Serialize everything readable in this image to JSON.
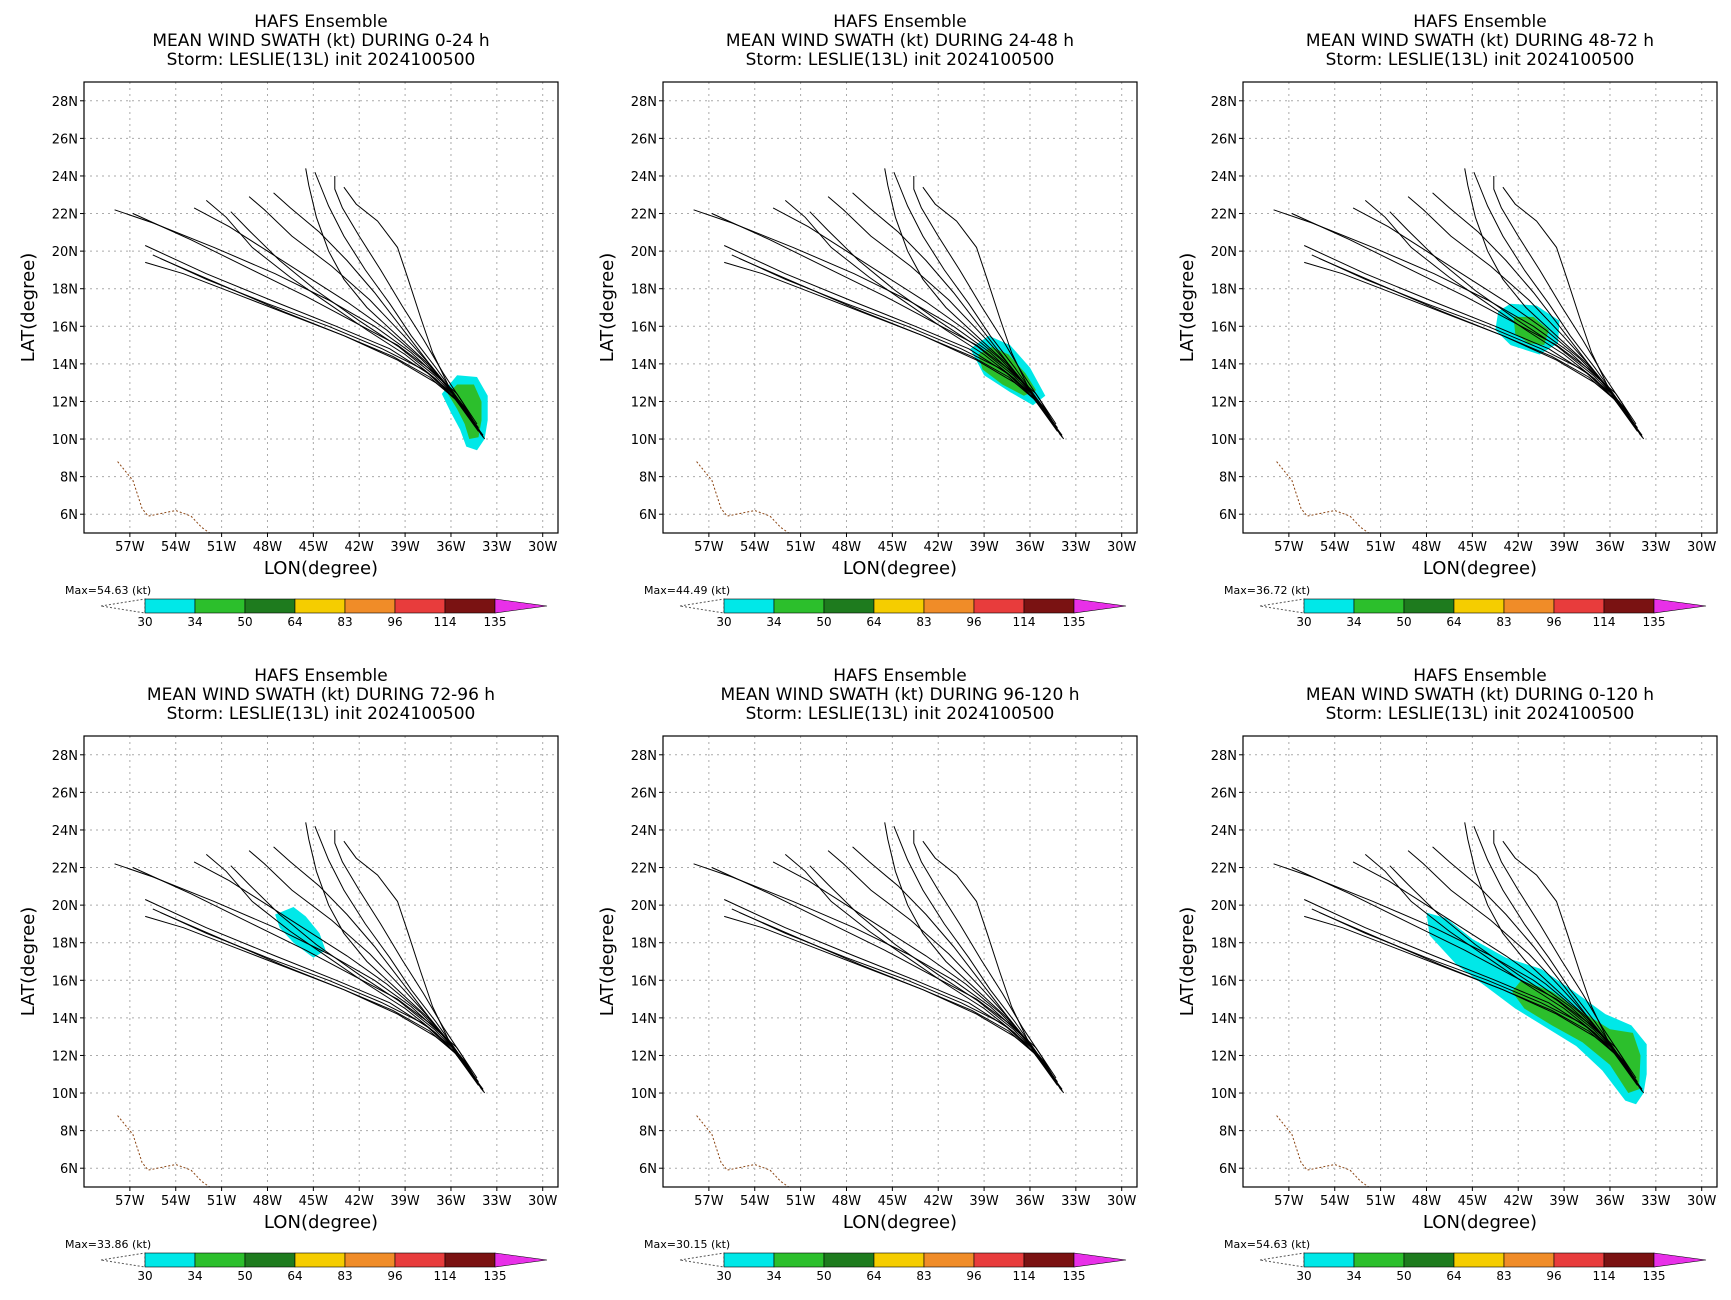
{
  "figure": {
    "storm_line": "Storm: LESLIE(13L) init 2024100500",
    "model": "HAFS Ensemble",
    "xlabel": "LON(degree)",
    "ylabel": "LAT(degree)"
  },
  "colorbar": {
    "levels": [
      "30",
      "34",
      "50",
      "64",
      "83",
      "96",
      "114",
      "135"
    ],
    "colors": [
      "#00e8e8",
      "#2cbf2c",
      "#1e7b1e",
      "#f5cd00",
      "#f08c28",
      "#e83c3c",
      "#7a1212",
      "#e830e8"
    ]
  },
  "panels": [
    {
      "title": "MEAN WIND SWATH (kt) DURING  0-24 h",
      "max": "Max=54.63 (kt)"
    },
    {
      "title": "MEAN WIND SWATH (kt) DURING 24-48 h",
      "max": "Max=44.49 (kt)"
    },
    {
      "title": "MEAN WIND SWATH (kt) DURING 48-72 h",
      "max": "Max=36.72 (kt)"
    },
    {
      "title": "MEAN WIND SWATH (kt) DURING 72-96 h",
      "max": "Max=33.86 (kt)"
    },
    {
      "title": "MEAN WIND SWATH (kt) DURING 96-120 h",
      "max": "Max=30.15 (kt)"
    },
    {
      "title": "MEAN WIND SWATH (kt) DURING 0-120 h",
      "max": "Max=54.63 (kt)"
    }
  ],
  "map": {
    "lon_ticks": [
      "57W",
      "54W",
      "51W",
      "48W",
      "45W",
      "42W",
      "39W",
      "36W",
      "33W",
      "30W"
    ],
    "lat_ticks": [
      "28N",
      "26N",
      "24N",
      "22N",
      "20N",
      "18N",
      "16N",
      "14N",
      "12N",
      "10N",
      "8N",
      "6N"
    ]
  },
  "chart_data": {
    "type": "map",
    "domain": {
      "lon": [
        -60,
        -29
      ],
      "lat": [
        5,
        29
      ]
    },
    "tracks": [
      [
        [
          -34.2,
          10.6
        ],
        [
          -35.5,
          12
        ],
        [
          -37,
          13
        ],
        [
          -39.5,
          14.2
        ],
        [
          -43,
          15.5
        ],
        [
          -47,
          16.8
        ],
        [
          -51,
          18.2
        ],
        [
          -55,
          19.6
        ]
      ],
      [
        [
          -34,
          10.3
        ],
        [
          -35.8,
          12.2
        ],
        [
          -37.5,
          13.5
        ],
        [
          -40,
          14.8
        ],
        [
          -43.5,
          16
        ],
        [
          -47.5,
          17.3
        ],
        [
          -52,
          18.8
        ],
        [
          -56,
          20.3
        ]
      ],
      [
        [
          -34.3,
          10.8
        ],
        [
          -35.6,
          12.4
        ],
        [
          -37.2,
          13.6
        ],
        [
          -39.5,
          15
        ],
        [
          -42.5,
          16.3
        ],
        [
          -45.5,
          17.6
        ],
        [
          -49,
          19
        ],
        [
          -53,
          20.6
        ],
        [
          -56.8,
          22
        ]
      ],
      [
        [
          -33.9,
          10.1
        ],
        [
          -35.3,
          11.8
        ],
        [
          -37,
          13.2
        ],
        [
          -39,
          14.5
        ],
        [
          -41.5,
          15.8
        ],
        [
          -44,
          17.2
        ],
        [
          -46.5,
          18.6
        ],
        [
          -49,
          20.2
        ],
        [
          -50.7,
          21.8
        ],
        [
          -52,
          22.7
        ]
      ],
      [
        [
          -34.5,
          10.9
        ],
        [
          -36,
          12.6
        ],
        [
          -37.5,
          14
        ],
        [
          -39.5,
          15.5
        ],
        [
          -41.5,
          17
        ],
        [
          -43,
          18.5
        ],
        [
          -44,
          20
        ],
        [
          -44.8,
          21.8
        ],
        [
          -45.3,
          23.5
        ],
        [
          -45.5,
          24.4
        ]
      ],
      [
        [
          -34.2,
          10.5
        ],
        [
          -35.6,
          12.2
        ],
        [
          -37,
          13.8
        ],
        [
          -38.6,
          15.5
        ],
        [
          -40,
          17.2
        ],
        [
          -41.6,
          19
        ],
        [
          -43,
          20.8
        ],
        [
          -44,
          22.4
        ],
        [
          -44.6,
          23.6
        ],
        [
          -44.9,
          24.2
        ]
      ],
      [
        [
          -34,
          10.2
        ],
        [
          -35.2,
          11.9
        ],
        [
          -36.5,
          13.5
        ],
        [
          -37.8,
          15.3
        ],
        [
          -39.2,
          17.1
        ],
        [
          -40.6,
          19
        ],
        [
          -42,
          20.8
        ],
        [
          -43.1,
          22.3
        ],
        [
          -43.6,
          23.3
        ],
        [
          -43.6,
          24
        ]
      ],
      [
        [
          -34.4,
          10.7
        ],
        [
          -35.7,
          12.3
        ],
        [
          -37.3,
          13.9
        ],
        [
          -39.2,
          15.6
        ],
        [
          -41.3,
          17.4
        ],
        [
          -43.8,
          19.2
        ],
        [
          -46.4,
          20.8
        ],
        [
          -48.2,
          22.2
        ],
        [
          -49.2,
          22.9
        ]
      ],
      [
        [
          -33.8,
          10
        ],
        [
          -35.1,
          11.7
        ],
        [
          -36.6,
          13.1
        ],
        [
          -38.6,
          14.6
        ],
        [
          -41,
          16
        ],
        [
          -44,
          17.4
        ],
        [
          -47.5,
          18.8
        ],
        [
          -51.5,
          20.2
        ],
        [
          -55.5,
          21.5
        ],
        [
          -58,
          22.2
        ]
      ],
      [
        [
          -34.6,
          11
        ],
        [
          -36.2,
          12.8
        ],
        [
          -38,
          14.3
        ],
        [
          -40.2,
          15.8
        ],
        [
          -42.8,
          17.3
        ],
        [
          -45.5,
          18.7
        ],
        [
          -48,
          20
        ],
        [
          -50.5,
          21.3
        ],
        [
          -52.8,
          22.3
        ]
      ],
      [
        [
          -34.1,
          10.4
        ],
        [
          -35.4,
          12
        ],
        [
          -37.1,
          13.4
        ],
        [
          -39.4,
          14.9
        ],
        [
          -42,
          16.3
        ],
        [
          -44.8,
          17.9
        ],
        [
          -47.2,
          19.5
        ],
        [
          -49.2,
          21.1
        ],
        [
          -50.4,
          22.1
        ]
      ],
      [
        [
          -34.3,
          10.6
        ],
        [
          -35.9,
          12.4
        ],
        [
          -37.8,
          13.7
        ],
        [
          -40.5,
          14.8
        ],
        [
          -44,
          16
        ],
        [
          -48,
          17.2
        ],
        [
          -52,
          18.5
        ],
        [
          -55.5,
          19.8
        ]
      ],
      [
        [
          -33.9,
          10.2
        ],
        [
          -35.1,
          11.5
        ],
        [
          -36.2,
          12.9
        ],
        [
          -37.2,
          14.6
        ],
        [
          -38,
          16.5
        ],
        [
          -38.8,
          18.5
        ],
        [
          -39.5,
          20.2
        ],
        [
          -40.8,
          21.6
        ],
        [
          -42.2,
          22.5
        ],
        [
          -43,
          23.4
        ]
      ],
      [
        [
          -34.5,
          10.8
        ],
        [
          -36,
          12.5
        ],
        [
          -37.6,
          14.2
        ],
        [
          -39.3,
          16
        ],
        [
          -41,
          17.8
        ],
        [
          -42.8,
          19.5
        ],
        [
          -44.6,
          21
        ],
        [
          -46.5,
          22.3
        ],
        [
          -47.6,
          23.1
        ]
      ],
      [
        [
          -34.2,
          10.4
        ],
        [
          -35.7,
          12.1
        ],
        [
          -37.4,
          13.3
        ],
        [
          -39.8,
          14.4
        ],
        [
          -43,
          15.5
        ],
        [
          -46.5,
          16.6
        ],
        [
          -50,
          17.7
        ],
        [
          -53.5,
          18.8
        ],
        [
          -56,
          19.4
        ]
      ]
    ],
    "coast": [
      [
        -57.8,
        8.8
      ],
      [
        -56.8,
        7.8
      ],
      [
        -56.2,
        6.3
      ],
      [
        -55.8,
        5.9
      ],
      [
        -54,
        6.2
      ],
      [
        -53,
        5.9
      ],
      [
        -52.3,
        5.3
      ],
      [
        -51.6,
        4.9
      ]
    ],
    "swaths": [
      [
        {
          "level": "30",
          "poly": [
            [
              -35.6,
              13.4
            ],
            [
              -34.3,
              13.3
            ],
            [
              -33.6,
              12.3
            ],
            [
              -33.6,
              11
            ],
            [
              -33.8,
              10
            ],
            [
              -34.3,
              9.4
            ],
            [
              -35,
              9.6
            ],
            [
              -35.4,
              10.5
            ],
            [
              -36,
              11.4
            ],
            [
              -36.6,
              12.4
            ]
          ]
        },
        {
          "level": "34",
          "poly": [
            [
              -35.6,
              12.9
            ],
            [
              -34.5,
              12.9
            ],
            [
              -34,
              12
            ],
            [
              -34,
              11
            ],
            [
              -34.2,
              10.1
            ],
            [
              -34.8,
              10
            ],
            [
              -35.1,
              10.8
            ],
            [
              -35.6,
              11.6
            ],
            [
              -36.2,
              12.4
            ]
          ]
        }
      ],
      [
        {
          "level": "30",
          "poly": [
            [
              -39.9,
              14.8
            ],
            [
              -38.7,
              15.5
            ],
            [
              -37.3,
              15
            ],
            [
              -36,
              13.8
            ],
            [
              -35,
              12.3
            ],
            [
              -35.8,
              11.8
            ],
            [
              -37.3,
              12.5
            ],
            [
              -39,
              13.4
            ]
          ]
        },
        {
          "level": "34",
          "poly": [
            [
              -39.4,
              14.5
            ],
            [
              -38.5,
              14.9
            ],
            [
              -37.4,
              14.5
            ],
            [
              -36.3,
              13.5
            ],
            [
              -35.6,
              12.6
            ],
            [
              -36.4,
              12.3
            ],
            [
              -37.8,
              12.9
            ],
            [
              -39.1,
              13.7
            ]
          ]
        }
      ],
      [
        {
          "level": "30",
          "poly": [
            [
              -43.3,
              16.8
            ],
            [
              -42.5,
              17.2
            ],
            [
              -40.8,
              17.1
            ],
            [
              -39.3,
              16.3
            ],
            [
              -39.4,
              15.1
            ],
            [
              -40.6,
              14.5
            ],
            [
              -42.5,
              15
            ],
            [
              -43.5,
              15.8
            ]
          ]
        },
        {
          "level": "34",
          "poly": [
            [
              -42.3,
              16.5
            ],
            [
              -41,
              16.5
            ],
            [
              -40,
              15.8
            ],
            [
              -40.3,
              15
            ],
            [
              -41.3,
              15.1
            ],
            [
              -42.2,
              15.6
            ]
          ]
        }
      ],
      [
        {
          "level": "30",
          "poly": [
            [
              -47.5,
              19.5
            ],
            [
              -46.3,
              19.9
            ],
            [
              -45.5,
              19.4
            ],
            [
              -44.6,
              18.5
            ],
            [
              -44.2,
              17.6
            ],
            [
              -45,
              17.2
            ],
            [
              -46.3,
              18
            ],
            [
              -47.2,
              18.8
            ]
          ]
        }
      ],
      [],
      [
        {
          "level": "30",
          "poly": [
            [
              -48,
              19.6
            ],
            [
              -46.7,
              19.3
            ],
            [
              -45,
              18.2
            ],
            [
              -42.8,
              17.2
            ],
            [
              -40.5,
              16.6
            ],
            [
              -38.5,
              15.5
            ],
            [
              -36.3,
              14.2
            ],
            [
              -34.6,
              13.6
            ],
            [
              -33.6,
              12.6
            ],
            [
              -33.6,
              11
            ],
            [
              -33.8,
              10
            ],
            [
              -34.3,
              9.4
            ],
            [
              -35,
              9.6
            ],
            [
              -36.5,
              11.2
            ],
            [
              -38.2,
              12.5
            ],
            [
              -40.2,
              13.5
            ],
            [
              -42.2,
              14.5
            ],
            [
              -44,
              15.6
            ],
            [
              -46,
              16.8
            ],
            [
              -47.8,
              18.4
            ]
          ]
        },
        {
          "level": "34",
          "poly": [
            [
              -41.8,
              16
            ],
            [
              -39.8,
              15.4
            ],
            [
              -37.8,
              14.3
            ],
            [
              -36,
              13.4
            ],
            [
              -34.5,
              13.2
            ],
            [
              -34,
              12
            ],
            [
              -34.1,
              10.2
            ],
            [
              -34.8,
              10
            ],
            [
              -36,
              11.5
            ],
            [
              -37.8,
              12.7
            ],
            [
              -39.8,
              13.6
            ],
            [
              -41.6,
              14.5
            ],
            [
              -42.4,
              15.4
            ]
          ]
        }
      ]
    ]
  }
}
